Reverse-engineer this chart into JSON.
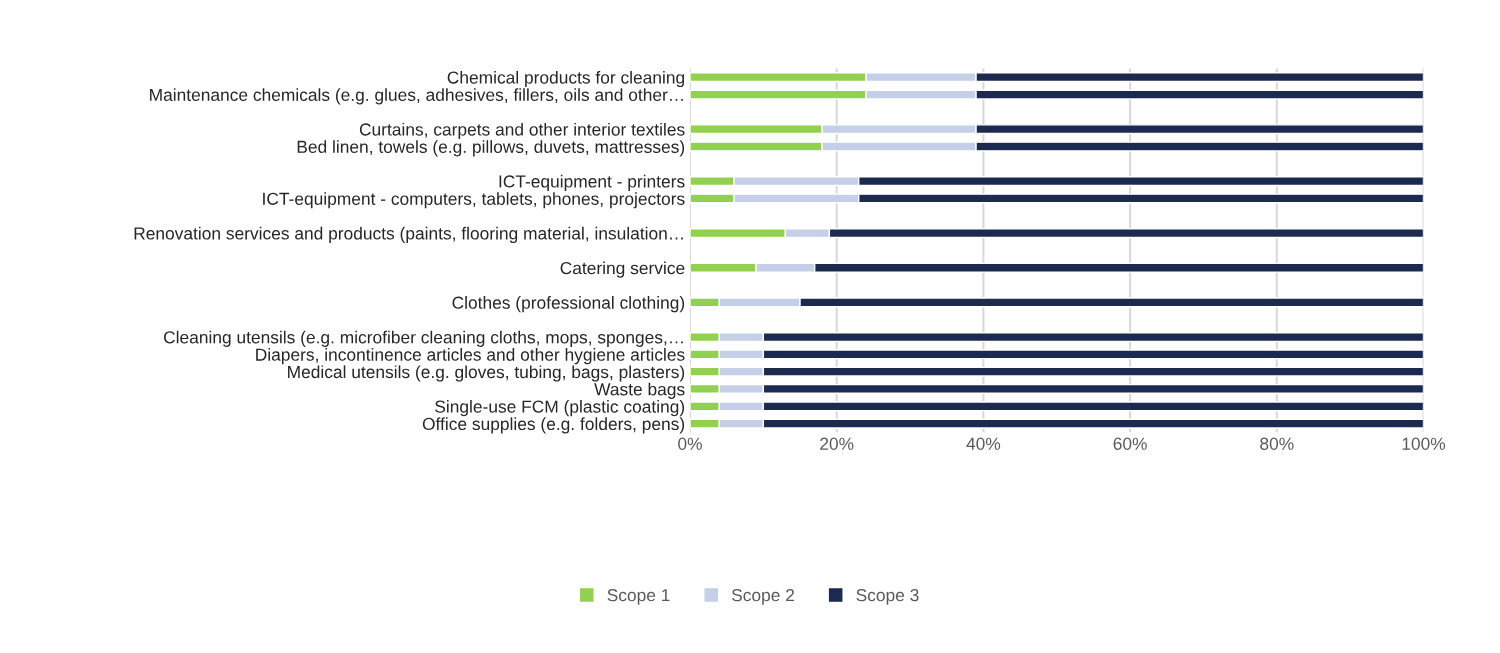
{
  "chart_data": {
    "type": "bar",
    "orientation": "horizontal",
    "stacked": true,
    "categories": [
      "Chemical products for cleaning",
      "Maintenance chemicals (e.g. glues, adhesives, fillers, oils and other…",
      null,
      "Curtains, carpets and other interior textiles",
      "Bed linen, towels (e.g. pillows, duvets, mattresses)",
      null,
      "ICT-equipment - printers",
      "ICT-equipment - computers, tablets, phones, projectors",
      null,
      "Renovation services and products (paints, flooring material, insulation…",
      null,
      "Catering service",
      null,
      "Clothes (professional clothing)",
      null,
      "Cleaning utensils (e.g. microfiber cleaning cloths, mops, sponges,…",
      "Diapers, incontinence articles and other hygiene articles",
      "Medical utensils (e.g. gloves, tubing, bags, plasters)",
      "Waste bags",
      "Single-use FCM (plastic coating)",
      "Office supplies (e.g. folders, pens)"
    ],
    "series": [
      {
        "name": "Scope 1",
        "color": "#92d050",
        "values": [
          24,
          24,
          null,
          18,
          18,
          null,
          6,
          6,
          null,
          13,
          null,
          9,
          null,
          4,
          null,
          4,
          4,
          4,
          4,
          4,
          4
        ]
      },
      {
        "name": "Scope 2",
        "color": "#c5d0e8",
        "values": [
          15,
          15,
          null,
          21,
          21,
          null,
          17,
          17,
          null,
          6,
          null,
          8,
          null,
          11,
          null,
          6,
          6,
          6,
          6,
          6,
          6
        ]
      },
      {
        "name": "Scope 3",
        "color": "#1c2a4f",
        "values": [
          61,
          61,
          null,
          61,
          61,
          null,
          77,
          77,
          null,
          81,
          null,
          83,
          null,
          85,
          null,
          90,
          90,
          90,
          90,
          90,
          90
        ]
      }
    ],
    "xlim": [
      0,
      100
    ],
    "xticks": [
      {
        "value": 0,
        "label": "0%"
      },
      {
        "value": 20,
        "label": "20%"
      },
      {
        "value": 40,
        "label": "40%"
      },
      {
        "value": 60,
        "label": "60%"
      },
      {
        "value": 80,
        "label": "80%"
      },
      {
        "value": 100,
        "label": "100%"
      }
    ],
    "grid": "x",
    "legend": "bottom"
  }
}
